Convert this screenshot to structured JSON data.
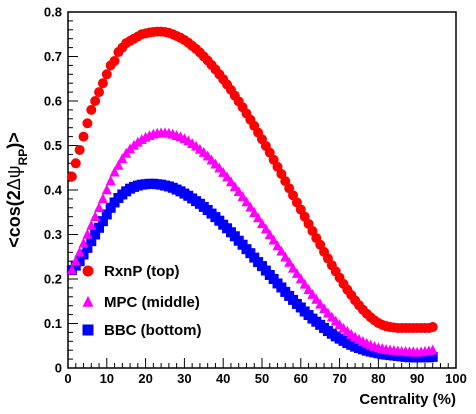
{
  "chart_data": {
    "type": "scatter",
    "xlabel": "Centrality (%)",
    "ylabel_parts": {
      "prefix": "<cos(2",
      "delta": "Δ",
      "psi": "ψ",
      "subscript": "RP",
      "suffix": ")>"
    },
    "xlim": [
      0,
      100
    ],
    "ylim": [
      0,
      0.8
    ],
    "x_ticks": [
      "0",
      "10",
      "20",
      "30",
      "40",
      "50",
      "60",
      "70",
      "80",
      "90",
      "100"
    ],
    "y_ticks": [
      "0",
      "0.1",
      "0.2",
      "0.3",
      "0.4",
      "0.5",
      "0.6",
      "0.7",
      "0.8"
    ],
    "grid": false,
    "legend_position": "bottom-left",
    "series": [
      {
        "name": "RxnP (top)",
        "marker": "circle",
        "color": "#ff0000",
        "x": [
          1,
          2,
          3,
          4,
          5,
          6,
          7,
          8,
          9,
          10,
          11,
          12,
          13,
          14,
          15,
          16,
          17,
          18,
          19,
          20,
          21,
          22,
          23,
          24,
          25,
          26,
          27,
          28,
          29,
          30,
          31,
          32,
          33,
          34,
          35,
          36,
          37,
          38,
          39,
          40,
          41,
          42,
          43,
          44,
          45,
          46,
          47,
          48,
          49,
          50,
          51,
          52,
          53,
          54,
          55,
          56,
          57,
          58,
          59,
          60,
          61,
          62,
          63,
          64,
          65,
          66,
          67,
          68,
          69,
          70,
          71,
          72,
          73,
          74,
          75,
          76,
          77,
          78,
          79,
          80,
          81,
          82,
          83,
          84,
          85,
          86,
          87,
          88,
          89,
          90,
          91,
          92,
          93,
          94
        ],
        "y": [
          0.43,
          0.46,
          0.49,
          0.52,
          0.55,
          0.58,
          0.6,
          0.62,
          0.64,
          0.66,
          0.68,
          0.69,
          0.71,
          0.72,
          0.73,
          0.735,
          0.74,
          0.745,
          0.75,
          0.752,
          0.754,
          0.755,
          0.756,
          0.756,
          0.755,
          0.753,
          0.75,
          0.746,
          0.742,
          0.737,
          0.731,
          0.724,
          0.717,
          0.709,
          0.7,
          0.691,
          0.681,
          0.671,
          0.66,
          0.649,
          0.637,
          0.625,
          0.612,
          0.599,
          0.586,
          0.572,
          0.558,
          0.544,
          0.529,
          0.514,
          0.499,
          0.484,
          0.468,
          0.452,
          0.436,
          0.42,
          0.404,
          0.388,
          0.372,
          0.356,
          0.34,
          0.324,
          0.308,
          0.292,
          0.277,
          0.261,
          0.246,
          0.231,
          0.217,
          0.203,
          0.189,
          0.176,
          0.164,
          0.152,
          0.141,
          0.131,
          0.122,
          0.114,
          0.107,
          0.101,
          0.097,
          0.094,
          0.092,
          0.091,
          0.09,
          0.09,
          0.09,
          0.09,
          0.09,
          0.09,
          0.09,
          0.09,
          0.09,
          0.092
        ]
      },
      {
        "name": "MPC (middle)",
        "marker": "triangle",
        "color": "#ff00ff",
        "x": [
          1,
          2,
          3,
          4,
          5,
          6,
          7,
          8,
          9,
          10,
          11,
          12,
          13,
          14,
          15,
          16,
          17,
          18,
          19,
          20,
          21,
          22,
          23,
          24,
          25,
          26,
          27,
          28,
          29,
          30,
          31,
          32,
          33,
          34,
          35,
          36,
          37,
          38,
          39,
          40,
          41,
          42,
          43,
          44,
          45,
          46,
          47,
          48,
          49,
          50,
          51,
          52,
          53,
          54,
          55,
          56,
          57,
          58,
          59,
          60,
          61,
          62,
          63,
          64,
          65,
          66,
          67,
          68,
          69,
          70,
          71,
          72,
          73,
          74,
          75,
          76,
          77,
          78,
          79,
          80,
          81,
          82,
          83,
          84,
          85,
          86,
          87,
          88,
          89,
          90,
          91,
          92,
          93,
          94
        ],
        "y": [
          0.22,
          0.24,
          0.26,
          0.28,
          0.3,
          0.32,
          0.34,
          0.36,
          0.38,
          0.4,
          0.42,
          0.44,
          0.455,
          0.47,
          0.482,
          0.492,
          0.5,
          0.507,
          0.513,
          0.518,
          0.522,
          0.525,
          0.527,
          0.528,
          0.528,
          0.527,
          0.525,
          0.522,
          0.519,
          0.515,
          0.51,
          0.504,
          0.498,
          0.491,
          0.484,
          0.476,
          0.467,
          0.458,
          0.449,
          0.439,
          0.429,
          0.418,
          0.407,
          0.396,
          0.385,
          0.373,
          0.361,
          0.349,
          0.337,
          0.324,
          0.312,
          0.299,
          0.287,
          0.274,
          0.262,
          0.249,
          0.237,
          0.224,
          0.212,
          0.2,
          0.188,
          0.176,
          0.165,
          0.154,
          0.143,
          0.133,
          0.123,
          0.114,
          0.105,
          0.097,
          0.089,
          0.082,
          0.075,
          0.069,
          0.064,
          0.059,
          0.055,
          0.051,
          0.048,
          0.045,
          0.043,
          0.041,
          0.04,
          0.039,
          0.038,
          0.037,
          0.037,
          0.036,
          0.036,
          0.035,
          0.036,
          0.037,
          0.038,
          0.04
        ]
      },
      {
        "name": "BBC (bottom)",
        "marker": "square",
        "color": "#0000ff",
        "x": [
          1,
          2,
          3,
          4,
          5,
          6,
          7,
          8,
          9,
          10,
          11,
          12,
          13,
          14,
          15,
          16,
          17,
          18,
          19,
          20,
          21,
          22,
          23,
          24,
          25,
          26,
          27,
          28,
          29,
          30,
          31,
          32,
          33,
          34,
          35,
          36,
          37,
          38,
          39,
          40,
          41,
          42,
          43,
          44,
          45,
          46,
          47,
          48,
          49,
          50,
          51,
          52,
          53,
          54,
          55,
          56,
          57,
          58,
          59,
          60,
          61,
          62,
          63,
          64,
          65,
          66,
          67,
          68,
          69,
          70,
          71,
          72,
          73,
          74,
          75,
          76,
          77,
          78,
          79,
          80,
          81,
          82,
          83,
          84,
          85,
          86,
          87,
          88,
          89,
          90,
          91,
          92,
          93,
          94
        ],
        "y": [
          0.22,
          0.23,
          0.24,
          0.255,
          0.27,
          0.285,
          0.3,
          0.315,
          0.33,
          0.345,
          0.36,
          0.372,
          0.382,
          0.39,
          0.397,
          0.403,
          0.407,
          0.41,
          0.412,
          0.413,
          0.414,
          0.414,
          0.413,
          0.412,
          0.41,
          0.408,
          0.405,
          0.401,
          0.397,
          0.392,
          0.387,
          0.381,
          0.375,
          0.369,
          0.362,
          0.355,
          0.347,
          0.339,
          0.331,
          0.322,
          0.314,
          0.305,
          0.296,
          0.286,
          0.277,
          0.267,
          0.258,
          0.248,
          0.238,
          0.229,
          0.219,
          0.209,
          0.2,
          0.19,
          0.181,
          0.171,
          0.162,
          0.153,
          0.144,
          0.136,
          0.127,
          0.119,
          0.111,
          0.104,
          0.097,
          0.09,
          0.083,
          0.077,
          0.071,
          0.066,
          0.061,
          0.056,
          0.052,
          0.048,
          0.045,
          0.042,
          0.039,
          0.037,
          0.035,
          0.033,
          0.031,
          0.03,
          0.029,
          0.028,
          0.027,
          0.026,
          0.025,
          0.024,
          0.024,
          0.024,
          0.024,
          0.024,
          0.024,
          0.025
        ]
      }
    ]
  }
}
